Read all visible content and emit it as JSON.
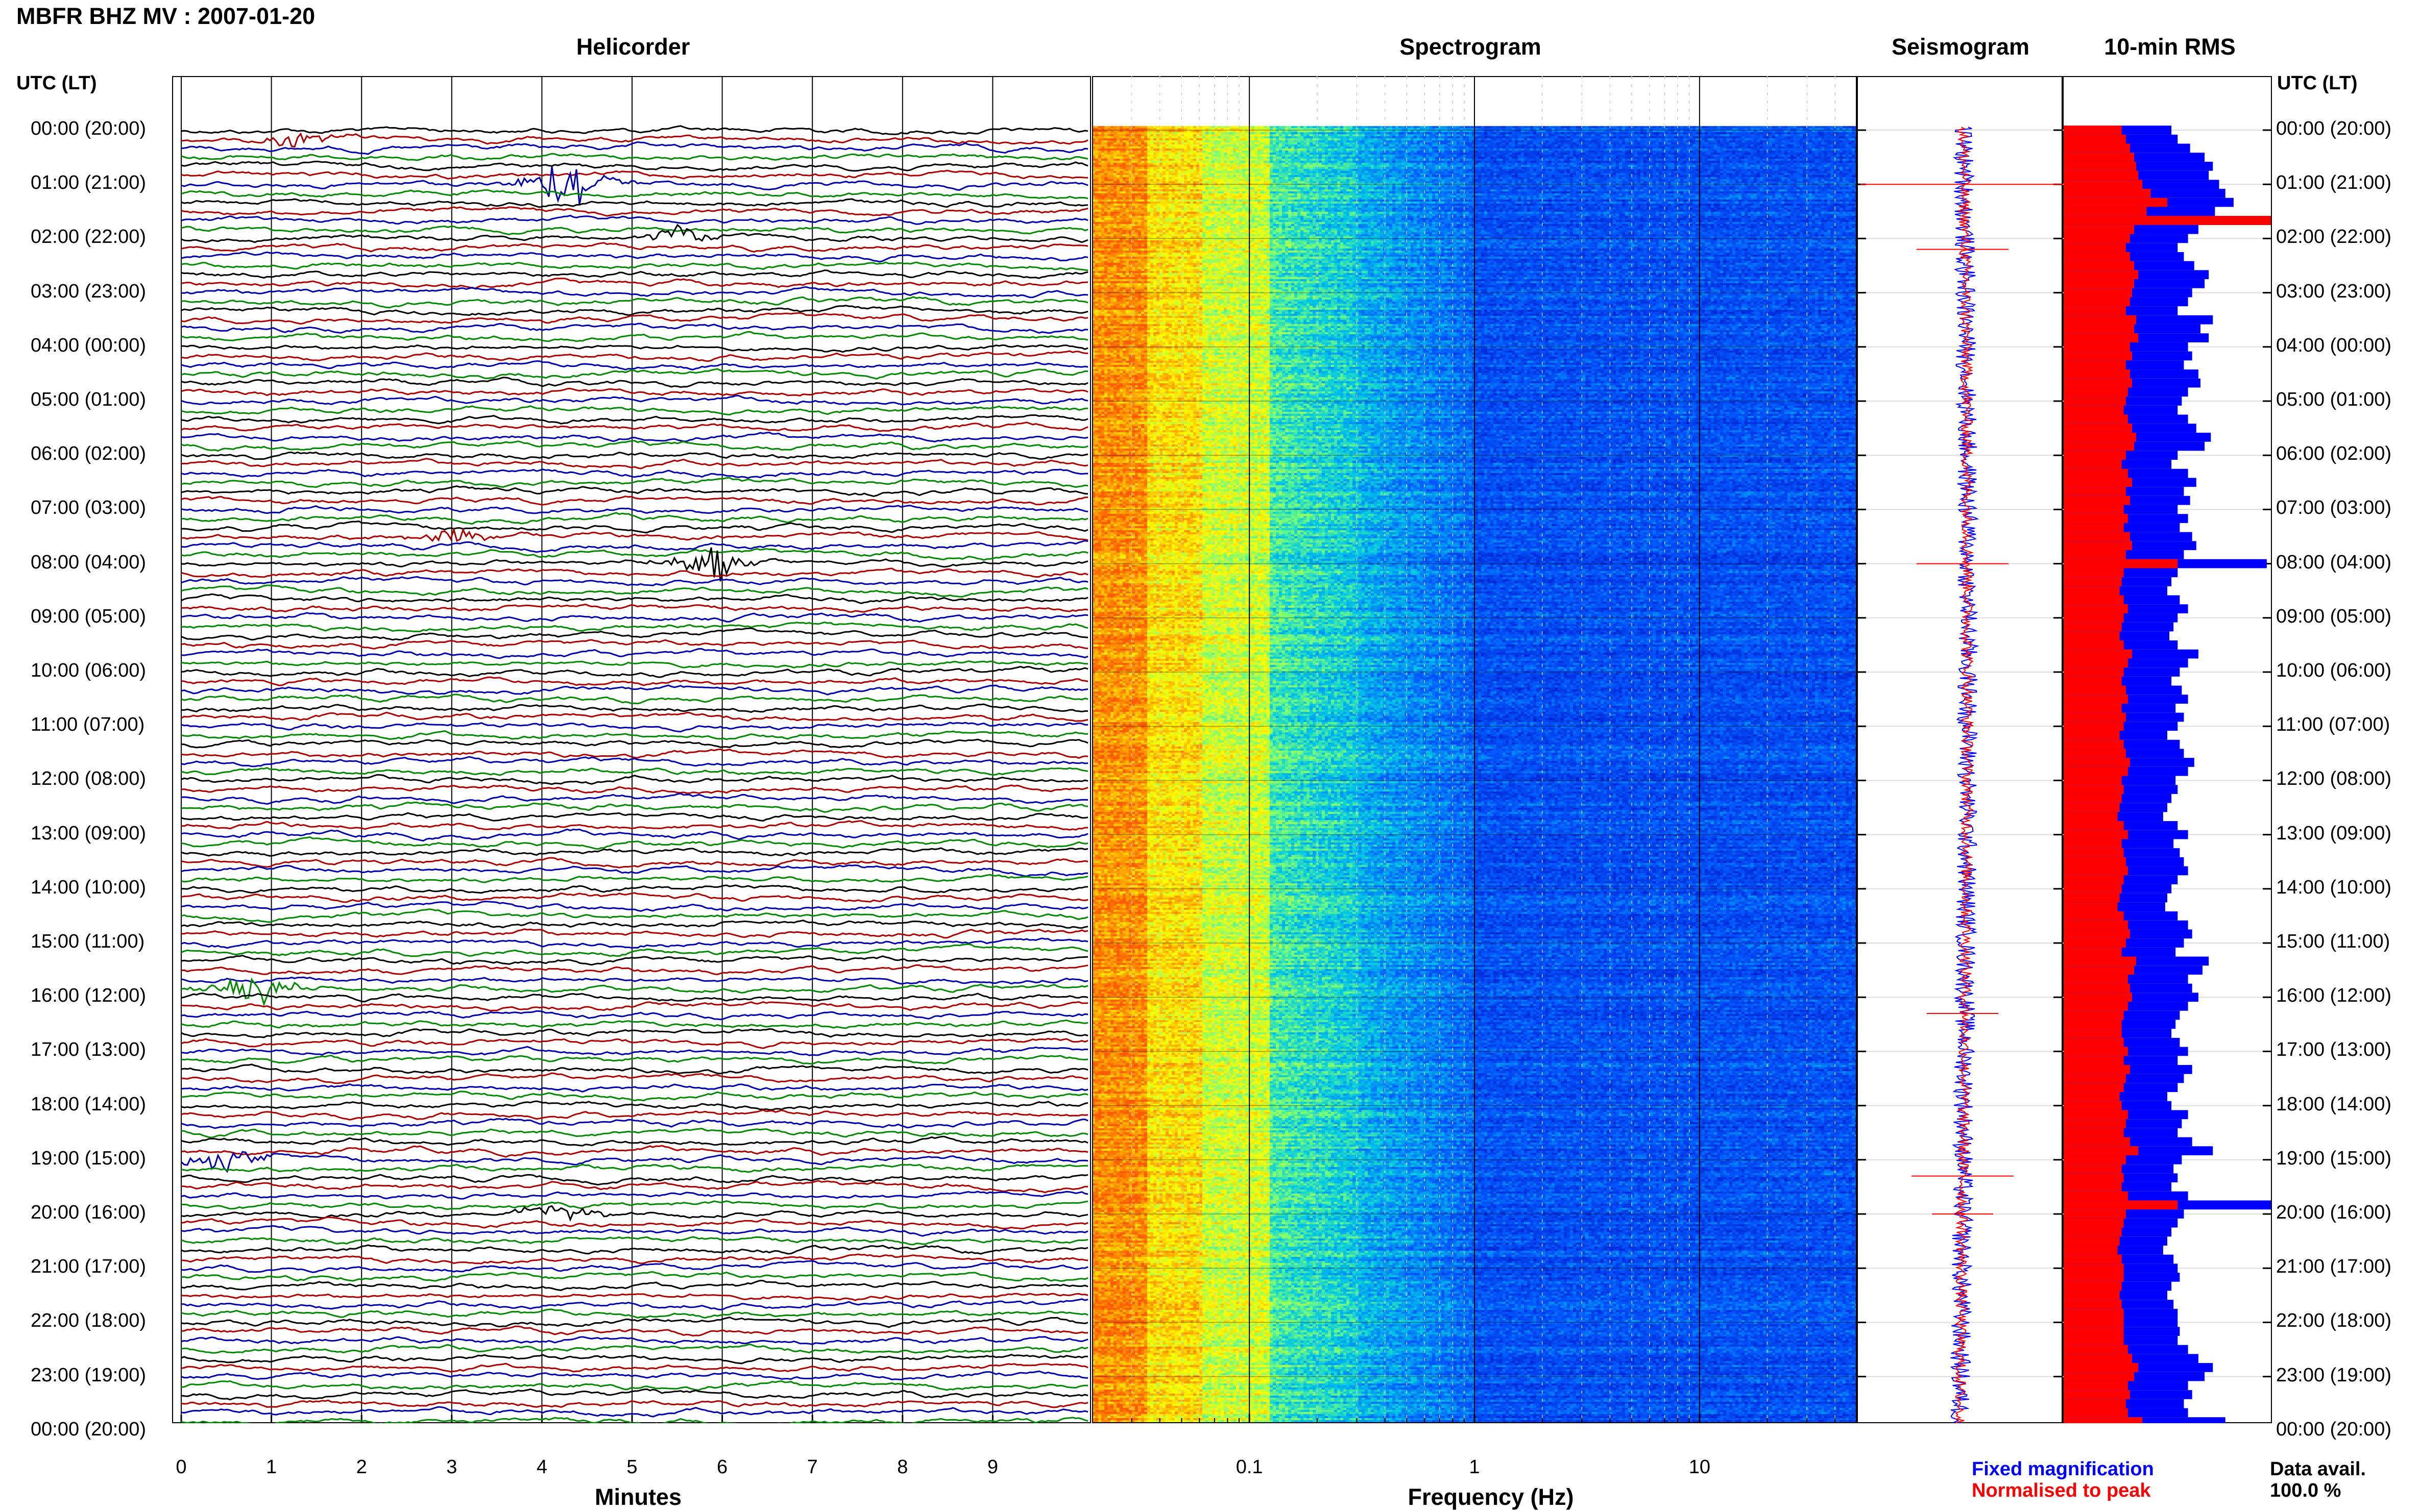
{
  "title": "MBFR BHZ MV : 2007-01-20",
  "panels": {
    "helicorder": "Helicorder",
    "spectrogram": "Spectrogram",
    "seismogram": "Seismogram",
    "rms": "10-min RMS"
  },
  "time_axis_label": "UTC (LT)",
  "time_labels": [
    "00:00 (20:00)",
    "01:00 (21:00)",
    "02:00 (22:00)",
    "03:00 (23:00)",
    "04:00 (00:00)",
    "05:00 (01:00)",
    "06:00 (02:00)",
    "07:00 (03:00)",
    "08:00 (04:00)",
    "09:00 (05:00)",
    "10:00 (06:00)",
    "11:00 (07:00)",
    "12:00 (08:00)",
    "13:00 (09:00)",
    "14:00 (10:00)",
    "15:00 (11:00)",
    "16:00 (12:00)",
    "17:00 (13:00)",
    "18:00 (14:00)",
    "19:00 (15:00)",
    "20:00 (16:00)",
    "21:00 (17:00)",
    "22:00 (18:00)",
    "23:00 (19:00)",
    "00:00 (20:00)"
  ],
  "x_axes": {
    "minutes_label": "Minutes",
    "minutes_ticks": [
      "0",
      "1",
      "2",
      "3",
      "4",
      "5",
      "6",
      "7",
      "8",
      "9"
    ],
    "frequency_label": "Frequency (Hz)",
    "frequency_ticks": [
      "0.1",
      "1",
      "10"
    ]
  },
  "legend": {
    "fixed": "Fixed magnification",
    "normalised": "Normalised to peak"
  },
  "data_avail": {
    "label": "Data avail.",
    "value": "100.0 %"
  },
  "colors": {
    "trace_cycle": [
      "#000000",
      "#aa0000",
      "#0000aa",
      "#008800"
    ],
    "rms_fixed": "#0000ff",
    "rms_normalised": "#ff0000",
    "spectrogram_low": "#0018e0",
    "spectrogram_high": "#ff7000"
  },
  "chart_data": [
    {
      "type": "line",
      "name": "helicorder",
      "x_unit": "minutes",
      "xlim": [
        0,
        10
      ],
      "rows_per_hour": 6,
      "hours": 24,
      "events": [
        {
          "row": 1,
          "minute": 1.3,
          "amp": 0.6
        },
        {
          "row": 6,
          "minute": 4.3,
          "amp": 2.6
        },
        {
          "row": 12,
          "minute": 5.5,
          "amp": 0.7
        },
        {
          "row": 45,
          "minute": 3.0,
          "amp": 0.6
        },
        {
          "row": 48,
          "minute": 5.9,
          "amp": 1.6
        },
        {
          "row": 95,
          "minute": 0.8,
          "amp": 1.7
        },
        {
          "row": 114,
          "minute": 0.4,
          "amp": 1.4
        },
        {
          "row": 120,
          "minute": 4.2,
          "amp": 0.7
        }
      ]
    },
    {
      "type": "heatmap",
      "name": "spectrogram",
      "x_unit": "Hz",
      "x_scale": "log",
      "xlim": [
        0.02,
        50
      ],
      "ylim_hours": [
        0,
        24
      ]
    },
    {
      "type": "line",
      "name": "seismogram",
      "series": [
        {
          "name": "Fixed magnification",
          "color": "#0000ff"
        },
        {
          "name": "Normalised to peak",
          "color": "#ff0000"
        }
      ]
    },
    {
      "type": "bar",
      "name": "10-min RMS",
      "orientation": "horizontal",
      "rows": 144,
      "series": [
        {
          "name": "Fixed magnification",
          "color": "#0000ff",
          "values": [
            0.52,
            0.55,
            0.61,
            0.68,
            0.72,
            0.7,
            0.75,
            0.78,
            0.82,
            0.73,
            1.0,
            0.65,
            0.6,
            0.55,
            0.58,
            0.63,
            0.7,
            0.68,
            0.62,
            0.6,
            0.55,
            0.72,
            0.66,
            0.7,
            0.6,
            0.62,
            0.58,
            0.65,
            0.66,
            0.6,
            0.57,
            0.55,
            0.6,
            0.64,
            0.71,
            0.68,
            0.55,
            0.52,
            0.6,
            0.64,
            0.58,
            0.61,
            0.55,
            0.6,
            0.56,
            0.62,
            0.64,
            0.58,
            0.98,
            0.55,
            0.52,
            0.5,
            0.56,
            0.6,
            0.55,
            0.53,
            0.51,
            0.55,
            0.65,
            0.6,
            0.56,
            0.52,
            0.57,
            0.6,
            0.54,
            0.58,
            0.55,
            0.5,
            0.56,
            0.58,
            0.63,
            0.6,
            0.54,
            0.55,
            0.52,
            0.5,
            0.48,
            0.55,
            0.6,
            0.53,
            0.56,
            0.58,
            0.6,
            0.55,
            0.52,
            0.5,
            0.49,
            0.55,
            0.6,
            0.62,
            0.58,
            0.54,
            0.7,
            0.67,
            0.6,
            0.62,
            0.65,
            0.6,
            0.56,
            0.54,
            0.52,
            0.56,
            0.6,
            0.55,
            0.62,
            0.58,
            0.55,
            0.5,
            0.52,
            0.6,
            0.57,
            0.55,
            0.62,
            0.72,
            0.57,
            0.53,
            0.55,
            0.52,
            0.6,
            1.0,
            0.58,
            0.55,
            0.52,
            0.5,
            0.48,
            0.53,
            0.55,
            0.56,
            0.52,
            0.5,
            0.53,
            0.55,
            0.55,
            0.56,
            0.55,
            0.6,
            0.65,
            0.72,
            0.68,
            0.6,
            0.62,
            0.58,
            0.6,
            0.78
          ]
        },
        {
          "name": "Normalised to peak",
          "color": "#ff0000",
          "values": [
            0.28,
            0.3,
            0.32,
            0.34,
            0.35,
            0.36,
            0.38,
            0.42,
            0.5,
            0.4,
            1.0,
            0.34,
            0.32,
            0.3,
            0.32,
            0.34,
            0.36,
            0.34,
            0.33,
            0.32,
            0.3,
            0.35,
            0.34,
            0.36,
            0.32,
            0.33,
            0.3,
            0.32,
            0.33,
            0.31,
            0.3,
            0.29,
            0.31,
            0.33,
            0.35,
            0.34,
            0.3,
            0.28,
            0.31,
            0.33,
            0.3,
            0.32,
            0.29,
            0.31,
            0.29,
            0.32,
            0.33,
            0.3,
            0.55,
            0.29,
            0.28,
            0.27,
            0.29,
            0.31,
            0.29,
            0.28,
            0.27,
            0.29,
            0.33,
            0.31,
            0.29,
            0.28,
            0.3,
            0.31,
            0.28,
            0.3,
            0.29,
            0.27,
            0.29,
            0.3,
            0.32,
            0.31,
            0.28,
            0.29,
            0.28,
            0.27,
            0.26,
            0.29,
            0.31,
            0.28,
            0.29,
            0.3,
            0.31,
            0.29,
            0.28,
            0.27,
            0.26,
            0.29,
            0.31,
            0.32,
            0.3,
            0.28,
            0.35,
            0.34,
            0.31,
            0.32,
            0.33,
            0.31,
            0.29,
            0.28,
            0.28,
            0.29,
            0.31,
            0.29,
            0.32,
            0.3,
            0.29,
            0.27,
            0.28,
            0.31,
            0.3,
            0.29,
            0.32,
            0.36,
            0.3,
            0.28,
            0.29,
            0.28,
            0.31,
            0.55,
            0.3,
            0.29,
            0.28,
            0.27,
            0.26,
            0.28,
            0.29,
            0.29,
            0.28,
            0.27,
            0.28,
            0.29,
            0.29,
            0.29,
            0.29,
            0.31,
            0.33,
            0.36,
            0.34,
            0.31,
            0.32,
            0.3,
            0.31,
            0.38
          ]
        }
      ]
    }
  ]
}
